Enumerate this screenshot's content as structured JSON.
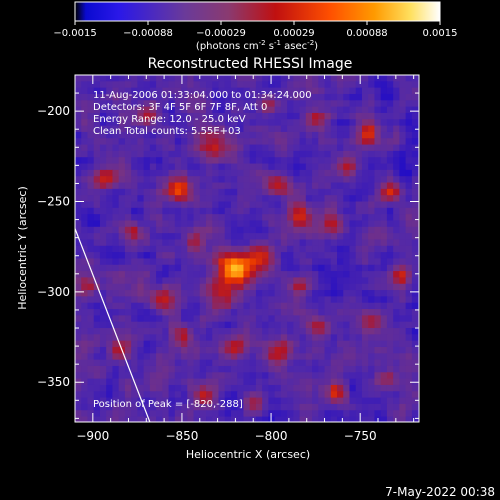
{
  "colorbar": {
    "ticks": [
      "-0.0015",
      "-0.00088",
      "-0.00029",
      "0.00029",
      "0.00088",
      "0.0015"
    ],
    "unit_label": "(photons cm",
    "unit_sup1": "-2",
    "unit_mid": " s",
    "unit_sup2": "-1",
    "unit_end": " asec",
    "unit_sup3": "-2",
    "unit_close": ")"
  },
  "chart_data": {
    "type": "heatmap",
    "title": "Reconstructed RHESSI Image",
    "xlabel": "Heliocentric X (arcsec)",
    "ylabel": "Heliocentric Y (arcsec)",
    "xlim": [
      -910,
      -717
    ],
    "ylim": [
      -372,
      -180
    ],
    "xticks": [
      -900,
      -850,
      -800,
      -750
    ],
    "xtick_labels": [
      "−900",
      "−850",
      "−800",
      "−750"
    ],
    "yticks": [
      -200,
      -250,
      -300,
      -350
    ],
    "ytick_labels": [
      "−200",
      "−250",
      "−300",
      "−350"
    ],
    "color_range": [
      -0.0015,
      0.0015
    ],
    "colormap": [
      "#000000",
      "#2a00c8",
      "#7a3aa0",
      "#c01410",
      "#ff7000",
      "#ffffff"
    ],
    "annotations": [
      "11-Aug-2006 01:33:04.000 to 01:34:24.000",
      "Detectors: 3F 4F 5F 6F 7F 8F, Att 0",
      "Energy Range: 12.0 - 25.0 keV",
      "Clean    Total counts: 5.55E+03"
    ],
    "peak_label": "Position of Peak = [-820,-288]",
    "peak": {
      "x": -820,
      "y": -288
    },
    "limb_line": [
      [
        -910,
        -265
      ],
      [
        -868,
        -372
      ]
    ],
    "sources": [
      {
        "x": -820,
        "y": -287,
        "s": 7,
        "a": 1.0
      },
      {
        "x": -806,
        "y": -281,
        "s": 5,
        "a": 0.55
      },
      {
        "x": -827,
        "y": -302,
        "s": 5,
        "a": 0.5
      },
      {
        "x": -852,
        "y": -243,
        "s": 5,
        "a": 0.7
      },
      {
        "x": -832,
        "y": -218,
        "s": 6,
        "a": 0.55
      },
      {
        "x": -795,
        "y": -241,
        "s": 5,
        "a": 0.55
      },
      {
        "x": -784,
        "y": -258,
        "s": 5,
        "a": 0.6
      },
      {
        "x": -766,
        "y": -262,
        "s": 5,
        "a": 0.55
      },
      {
        "x": -757,
        "y": -231,
        "s": 4,
        "a": 0.45
      },
      {
        "x": -745,
        "y": -213,
        "s": 4,
        "a": 0.5
      },
      {
        "x": -732,
        "y": -245,
        "s": 4,
        "a": 0.55
      },
      {
        "x": -893,
        "y": -237,
        "s": 4,
        "a": 0.5
      },
      {
        "x": -877,
        "y": -266,
        "s": 4,
        "a": 0.4
      },
      {
        "x": -861,
        "y": -303,
        "s": 5,
        "a": 0.5
      },
      {
        "x": -850,
        "y": -323,
        "s": 4,
        "a": 0.45
      },
      {
        "x": -820,
        "y": -331,
        "s": 5,
        "a": 0.55
      },
      {
        "x": -796,
        "y": -333,
        "s": 5,
        "a": 0.5
      },
      {
        "x": -772,
        "y": -319,
        "s": 4,
        "a": 0.45
      },
      {
        "x": -784,
        "y": -296,
        "s": 4,
        "a": 0.5
      },
      {
        "x": -744,
        "y": -318,
        "s": 4,
        "a": 0.4
      },
      {
        "x": -727,
        "y": -292,
        "s": 4,
        "a": 0.45
      },
      {
        "x": -763,
        "y": -355,
        "s": 4,
        "a": 0.55
      },
      {
        "x": -737,
        "y": -348,
        "s": 4,
        "a": 0.4
      },
      {
        "x": -885,
        "y": -333,
        "s": 4,
        "a": 0.4
      },
      {
        "x": -902,
        "y": -296,
        "s": 4,
        "a": 0.4
      },
      {
        "x": -905,
        "y": -208,
        "s": 4,
        "a": 0.35
      },
      {
        "x": -870,
        "y": -203,
        "s": 4,
        "a": 0.4
      },
      {
        "x": -802,
        "y": -198,
        "s": 4,
        "a": 0.4
      },
      {
        "x": -775,
        "y": -205,
        "s": 4,
        "a": 0.4
      },
      {
        "x": -838,
        "y": -358,
        "s": 4,
        "a": 0.45
      },
      {
        "x": -810,
        "y": -362,
        "s": 4,
        "a": 0.4
      },
      {
        "x": -843,
        "y": -272,
        "s": 4,
        "a": 0.45
      }
    ]
  },
  "footer": {
    "timestamp": "7-May-2022 00:38"
  }
}
